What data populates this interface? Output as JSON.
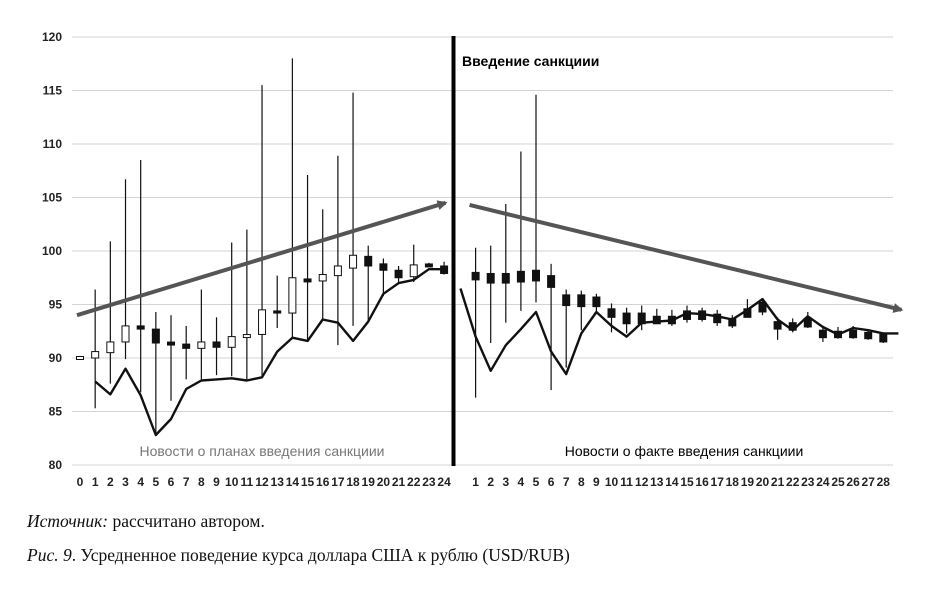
{
  "chart_data": {
    "type": "candlestick+line",
    "ylim": [
      80,
      120
    ],
    "y_ticks": [
      80,
      85,
      90,
      95,
      100,
      105,
      110,
      115,
      120
    ],
    "x_ticks_left": [
      "0",
      "1",
      "2",
      "3",
      "4",
      "5",
      "6",
      "7",
      "8",
      "9",
      "10",
      "11",
      "12",
      "13",
      "14",
      "15",
      "16",
      "17",
      "18",
      "19",
      "20",
      "21",
      "22",
      "23",
      "24"
    ],
    "x_ticks_right": [
      "1",
      "2",
      "3",
      "4",
      "5",
      "6",
      "7",
      "8",
      "9",
      "10",
      "11",
      "12",
      "13",
      "14",
      "15",
      "16",
      "17",
      "18",
      "19",
      "20",
      "21",
      "22",
      "23",
      "24",
      "25",
      "26",
      "27",
      "28"
    ],
    "annotation_top": "Введение санкциии",
    "label_left": "Новости о планах введения санкциии",
    "label_right": "Новости о факте введения санкциии",
    "trend_left": {
      "from": [
        0,
        94.0
      ],
      "to": [
        24,
        104.5
      ]
    },
    "trend_right": {
      "from": [
        1,
        104.3
      ],
      "to": [
        28,
        94.5
      ]
    },
    "candles_left": [
      {
        "x": 0,
        "open": 90.0,
        "close": 90.0,
        "high": 90.0,
        "low": 90.0
      },
      {
        "x": 1,
        "open": 90.0,
        "close": 90.6,
        "high": 96.4,
        "low": 85.3
      },
      {
        "x": 2,
        "open": 90.5,
        "close": 91.5,
        "high": 100.9,
        "low": 87.6
      },
      {
        "x": 3,
        "open": 91.5,
        "close": 93.0,
        "high": 106.7,
        "low": 89.9
      },
      {
        "x": 4,
        "open": 93.0,
        "close": 92.7,
        "high": 108.5,
        "low": 86.8
      },
      {
        "x": 5,
        "open": 92.7,
        "close": 91.4,
        "high": 94.3,
        "low": 82.7
      },
      {
        "x": 6,
        "open": 91.4,
        "close": 91.3,
        "high": 94.0,
        "low": 86.0
      },
      {
        "x": 7,
        "open": 91.3,
        "close": 90.9,
        "high": 93.0,
        "low": 88.0
      },
      {
        "x": 8,
        "open": 90.9,
        "close": 91.5,
        "high": 96.4,
        "low": 88.0
      },
      {
        "x": 9,
        "open": 91.5,
        "close": 91.0,
        "high": 93.8,
        "low": 88.4
      },
      {
        "x": 10,
        "open": 91.0,
        "close": 92.0,
        "high": 100.8,
        "low": 88.3
      },
      {
        "x": 11,
        "open": 92.0,
        "close": 92.1,
        "high": 102.0,
        "low": 88.0
      },
      {
        "x": 12,
        "open": 92.2,
        "close": 94.5,
        "high": 115.5,
        "low": 88.3
      },
      {
        "x": 13,
        "open": 94.4,
        "close": 94.2,
        "high": 97.7,
        "low": 92.8
      },
      {
        "x": 14,
        "open": 94.2,
        "close": 97.5,
        "high": 118.0,
        "low": 91.9
      },
      {
        "x": 15,
        "open": 97.3,
        "close": 97.2,
        "high": 107.1,
        "low": 91.5
      },
      {
        "x": 16,
        "open": 97.2,
        "close": 97.8,
        "high": 103.9,
        "low": 93.6
      },
      {
        "x": 17,
        "open": 97.7,
        "close": 98.6,
        "high": 108.9,
        "low": 91.2
      },
      {
        "x": 18,
        "open": 98.4,
        "close": 99.6,
        "high": 114.8,
        "low": 93.0
      },
      {
        "x": 19,
        "open": 99.5,
        "close": 98.6,
        "high": 100.5,
        "low": 93.4
      },
      {
        "x": 20,
        "open": 98.8,
        "close": 98.2,
        "high": 99.3,
        "low": 95.8
      },
      {
        "x": 21,
        "open": 98.2,
        "close": 97.5,
        "high": 98.6,
        "low": 97.0
      },
      {
        "x": 22,
        "open": 97.6,
        "close": 98.7,
        "high": 100.6,
        "low": 97.1
      },
      {
        "x": 23,
        "open": 98.7,
        "close": 98.6,
        "high": 98.9,
        "low": 98.5
      },
      {
        "x": 24,
        "open": 98.6,
        "close": 97.9,
        "high": 99.0,
        "low": 97.8
      }
    ],
    "candles_right": [
      {
        "x": 1,
        "open": 98.0,
        "close": 97.3,
        "high": 100.3,
        "low": 86.3
      },
      {
        "x": 2,
        "open": 97.9,
        "close": 97.0,
        "high": 100.5,
        "low": 91.4
      },
      {
        "x": 3,
        "open": 97.9,
        "close": 97.0,
        "high": 104.4,
        "low": 93.3
      },
      {
        "x": 4,
        "open": 98.1,
        "close": 97.1,
        "high": 109.3,
        "low": 94.4
      },
      {
        "x": 5,
        "open": 98.2,
        "close": 97.2,
        "high": 114.6,
        "low": 95.2
      },
      {
        "x": 6,
        "open": 97.7,
        "close": 96.6,
        "high": 98.8,
        "low": 87.0
      },
      {
        "x": 7,
        "open": 95.9,
        "close": 94.9,
        "high": 96.4,
        "low": 89.1
      },
      {
        "x": 8,
        "open": 95.9,
        "close": 94.8,
        "high": 96.3,
        "low": 92.6
      },
      {
        "x": 9,
        "open": 95.7,
        "close": 94.8,
        "high": 96.0,
        "low": 94.1
      },
      {
        "x": 10,
        "open": 94.6,
        "close": 93.8,
        "high": 95.1,
        "low": 92.4
      },
      {
        "x": 11,
        "open": 94.2,
        "close": 93.2,
        "high": 94.7,
        "low": 92.3
      },
      {
        "x": 12,
        "open": 94.2,
        "close": 93.2,
        "high": 94.9,
        "low": 92.6
      },
      {
        "x": 13,
        "open": 93.9,
        "close": 93.2,
        "high": 94.6,
        "low": 93.2
      },
      {
        "x": 14,
        "open": 93.9,
        "close": 93.2,
        "high": 94.5,
        "low": 93.0
      },
      {
        "x": 15,
        "open": 94.4,
        "close": 93.6,
        "high": 94.9,
        "low": 93.3
      },
      {
        "x": 16,
        "open": 94.4,
        "close": 93.6,
        "high": 94.7,
        "low": 93.4
      },
      {
        "x": 17,
        "open": 94.1,
        "close": 93.3,
        "high": 94.5,
        "low": 93.0
      },
      {
        "x": 18,
        "open": 93.7,
        "close": 93.0,
        "high": 94.0,
        "low": 92.8
      },
      {
        "x": 19,
        "open": 94.6,
        "close": 93.8,
        "high": 95.5,
        "low": 93.8
      },
      {
        "x": 20,
        "open": 95.2,
        "close": 94.3,
        "high": 95.6,
        "low": 94.0
      },
      {
        "x": 21,
        "open": 93.4,
        "close": 92.7,
        "high": 93.8,
        "low": 91.7
      },
      {
        "x": 22,
        "open": 93.3,
        "close": 92.6,
        "high": 93.7,
        "low": 92.4
      },
      {
        "x": 23,
        "open": 93.7,
        "close": 92.9,
        "high": 94.3,
        "low": 92.8
      },
      {
        "x": 24,
        "open": 92.6,
        "close": 91.9,
        "high": 93.0,
        "low": 91.5
      },
      {
        "x": 25,
        "open": 92.5,
        "close": 91.9,
        "high": 92.9,
        "low": 91.8
      },
      {
        "x": 26,
        "open": 92.6,
        "close": 91.9,
        "high": 93.0,
        "low": 91.8
      },
      {
        "x": 27,
        "open": 92.4,
        "close": 91.8,
        "high": 92.7,
        "low": 91.7
      },
      {
        "x": 28,
        "open": 92.2,
        "close": 91.5,
        "high": 92.4,
        "low": 91.4
      }
    ],
    "line_left": [
      {
        "x": 1,
        "y": 87.8
      },
      {
        "x": 2,
        "y": 86.6
      },
      {
        "x": 3,
        "y": 89.0
      },
      {
        "x": 4,
        "y": 86.5
      },
      {
        "x": 5,
        "y": 82.8
      },
      {
        "x": 6,
        "y": 84.3
      },
      {
        "x": 7,
        "y": 87.1
      },
      {
        "x": 8,
        "y": 87.9
      },
      {
        "x": 9,
        "y": 88.0
      },
      {
        "x": 10,
        "y": 88.1
      },
      {
        "x": 11,
        "y": 87.9
      },
      {
        "x": 12,
        "y": 88.2
      },
      {
        "x": 13,
        "y": 90.6
      },
      {
        "x": 14,
        "y": 91.9
      },
      {
        "x": 15,
        "y": 91.6
      },
      {
        "x": 16,
        "y": 93.6
      },
      {
        "x": 17,
        "y": 93.3
      },
      {
        "x": 18,
        "y": 91.6
      },
      {
        "x": 19,
        "y": 93.4
      },
      {
        "x": 20,
        "y": 96.0
      },
      {
        "x": 21,
        "y": 97.0
      },
      {
        "x": 22,
        "y": 97.3
      },
      {
        "x": 23,
        "y": 98.3
      },
      {
        "x": 24,
        "y": 98.3
      }
    ],
    "line_right": [
      {
        "x": 0,
        "y": 96.5
      },
      {
        "x": 1,
        "y": 92.0
      },
      {
        "x": 2,
        "y": 88.8
      },
      {
        "x": 3,
        "y": 91.2
      },
      {
        "x": 4,
        "y": 92.7
      },
      {
        "x": 5,
        "y": 94.3
      },
      {
        "x": 6,
        "y": 90.6
      },
      {
        "x": 7,
        "y": 88.5
      },
      {
        "x": 8,
        "y": 92.3
      },
      {
        "x": 9,
        "y": 94.3
      },
      {
        "x": 10,
        "y": 93.0
      },
      {
        "x": 11,
        "y": 92.0
      },
      {
        "x": 12,
        "y": 93.3
      },
      {
        "x": 13,
        "y": 93.4
      },
      {
        "x": 14,
        "y": 93.5
      },
      {
        "x": 15,
        "y": 94.2
      },
      {
        "x": 16,
        "y": 94.1
      },
      {
        "x": 17,
        "y": 93.9
      },
      {
        "x": 18,
        "y": 93.6
      },
      {
        "x": 19,
        "y": 94.5
      },
      {
        "x": 20,
        "y": 95.5
      },
      {
        "x": 21,
        "y": 93.6
      },
      {
        "x": 22,
        "y": 92.6
      },
      {
        "x": 23,
        "y": 93.9
      },
      {
        "x": 24,
        "y": 92.9
      },
      {
        "x": 25,
        "y": 92.2
      },
      {
        "x": 26,
        "y": 92.8
      },
      {
        "x": 27,
        "y": 92.6
      },
      {
        "x": 28,
        "y": 92.3
      },
      {
        "x": 29,
        "y": 92.3
      }
    ]
  },
  "caption": {
    "source_label": "Источник:",
    "source_text": " рассчитано автором.",
    "fig_label": "Рис. 9",
    "fig_text": ". Усредненное поведение курса доллара США к рублю (USD/RUB)"
  }
}
